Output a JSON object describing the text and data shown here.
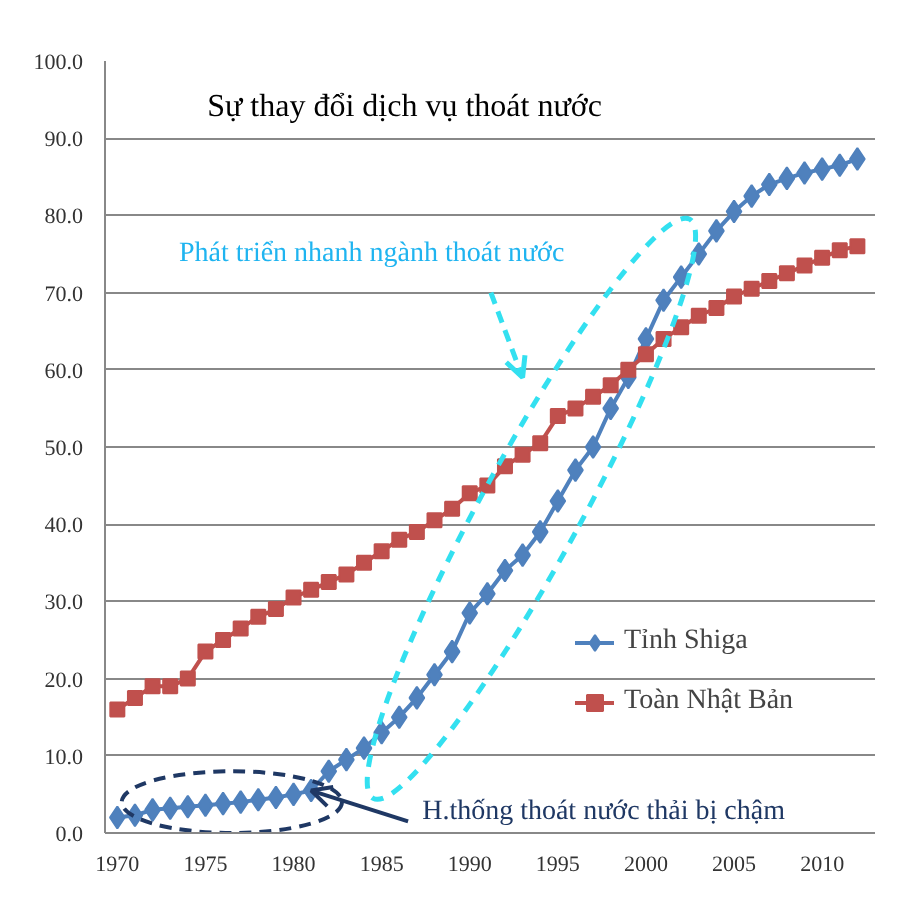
{
  "chart_data": {
    "type": "line",
    "title": "Sự thay đổi dịch vụ thoát nước",
    "x": [
      1970,
      1971,
      1972,
      1973,
      1974,
      1975,
      1976,
      1977,
      1978,
      1979,
      1980,
      1981,
      1982,
      1983,
      1984,
      1985,
      1986,
      1987,
      1988,
      1989,
      1990,
      1991,
      1992,
      1993,
      1994,
      1995,
      1996,
      1997,
      1998,
      1999,
      2000,
      2001,
      2002,
      2003,
      2004,
      2005,
      2006,
      2007,
      2008,
      2009,
      2010,
      2011,
      2012
    ],
    "series": [
      {
        "name": "Tỉnh Shiga",
        "color": "#4f81bd",
        "marker": "diamond",
        "values": [
          2.0,
          2.3,
          3.0,
          3.2,
          3.4,
          3.6,
          3.8,
          4.0,
          4.3,
          4.6,
          5.0,
          5.5,
          8.0,
          9.5,
          11,
          13,
          15,
          17.5,
          20.5,
          23.5,
          28.5,
          31,
          34,
          36,
          39,
          43,
          47,
          50,
          55,
          59,
          64,
          69,
          72,
          75,
          78,
          80.5,
          82.5,
          84,
          84.8,
          85.5,
          86,
          86.5,
          87.3
        ]
      },
      {
        "name": "Toàn Nhật Bản",
        "color": "#c0504d",
        "marker": "square",
        "values": [
          16,
          17.5,
          19,
          19,
          20,
          23.5,
          25,
          26.5,
          28,
          29,
          30.5,
          31.5,
          32.5,
          33.5,
          35,
          36.5,
          38,
          39,
          40.5,
          42,
          44,
          45,
          47.5,
          49,
          50.5,
          54,
          55,
          56.5,
          58,
          60,
          62,
          64,
          65.5,
          67,
          68,
          69.5,
          70.5,
          71.5,
          72.5,
          73.5,
          74.5,
          75.5,
          76
        ]
      }
    ],
    "xlim": [
      1969.3,
      2013
    ],
    "xticks": [
      1970,
      1975,
      1980,
      1985,
      1990,
      1995,
      2000,
      2005,
      2010
    ],
    "ylim": [
      0,
      100
    ],
    "yticks": [
      {
        "value": 0,
        "label": "0.0"
      },
      {
        "value": 10,
        "label": "10.0"
      },
      {
        "value": 20,
        "label": "20.0"
      },
      {
        "value": 30,
        "label": "30.0"
      },
      {
        "value": 40,
        "label": "40.0"
      },
      {
        "value": 50,
        "label": "50.0"
      },
      {
        "value": 60,
        "label": "60.0"
      },
      {
        "value": 70,
        "label": "70.0"
      },
      {
        "value": 80,
        "label": "80.0"
      },
      {
        "value": 90,
        "label": "90.0"
      },
      {
        "value": 100,
        "label": "100.0"
      }
    ],
    "grid": "y",
    "legend": "right",
    "annotations": [
      "Phát triển nhanh ngành thoát nước",
      {
        "text": "H.thống thoát nước thải bị  chậm",
        "x": 1981,
        "y": 5.5
      }
    ]
  }
}
